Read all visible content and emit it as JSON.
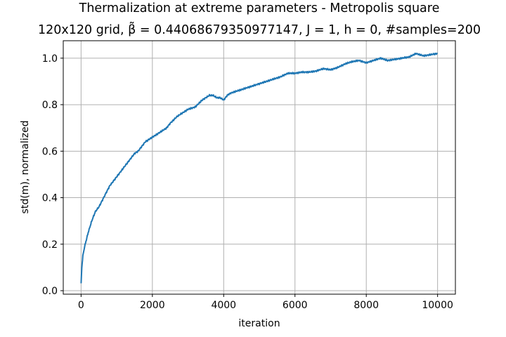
{
  "chart_data": {
    "type": "line",
    "title": "Thermalization at extreme parameters - Metropolis square",
    "subtitle": "120x120 grid, β̃ = 0.44068679350977147, J = 1, h = 0, #samples=200",
    "xlabel": "iteration",
    "ylabel": "std(m), normalized",
    "xlim": [
      -500,
      10500
    ],
    "ylim": [
      -0.015,
      1.075
    ],
    "xticks": [
      0,
      2000,
      4000,
      6000,
      8000,
      10000
    ],
    "xtick_labels": [
      "0",
      "2000",
      "4000",
      "6000",
      "8000",
      "10000"
    ],
    "yticks": [
      0.0,
      0.2,
      0.4,
      0.6,
      0.8,
      1.0
    ],
    "ytick_labels": [
      "0.0",
      "0.2",
      "0.4",
      "0.6",
      "0.8",
      "1.0"
    ],
    "grid": true,
    "line_color": "#1f77b4",
    "series": [
      {
        "x": [
          0,
          20,
          50,
          100,
          150,
          200,
          300,
          400,
          500,
          600,
          700,
          800,
          900,
          1000,
          1200,
          1400,
          1500,
          1600,
          1700,
          1800,
          2000,
          2200,
          2400,
          2500,
          2700,
          2800,
          3000,
          3200,
          3400,
          3500,
          3600,
          3700,
          3800,
          3900,
          4000,
          4100,
          4200,
          4400,
          4600,
          4800,
          5000,
          5200,
          5400,
          5600,
          5800,
          6000,
          6200,
          6400,
          6600,
          6800,
          7000,
          7200,
          7400,
          7600,
          7800,
          8000,
          8200,
          8400,
          8600,
          8800,
          9000,
          9200,
          9400,
          9600,
          9800,
          10000
        ],
        "y": [
          0.03,
          0.1,
          0.15,
          0.19,
          0.22,
          0.25,
          0.3,
          0.34,
          0.36,
          0.39,
          0.42,
          0.45,
          0.47,
          0.49,
          0.53,
          0.57,
          0.59,
          0.6,
          0.62,
          0.64,
          0.66,
          0.68,
          0.7,
          0.72,
          0.75,
          0.76,
          0.78,
          0.79,
          0.82,
          0.83,
          0.84,
          0.84,
          0.83,
          0.83,
          0.82,
          0.84,
          0.85,
          0.86,
          0.87,
          0.88,
          0.89,
          0.9,
          0.91,
          0.92,
          0.935,
          0.935,
          0.94,
          0.94,
          0.945,
          0.955,
          0.95,
          0.96,
          0.975,
          0.985,
          0.99,
          0.98,
          0.99,
          1.0,
          0.99,
          0.995,
          1.0,
          1.005,
          1.02,
          1.01,
          1.015,
          1.02
        ]
      }
    ]
  }
}
